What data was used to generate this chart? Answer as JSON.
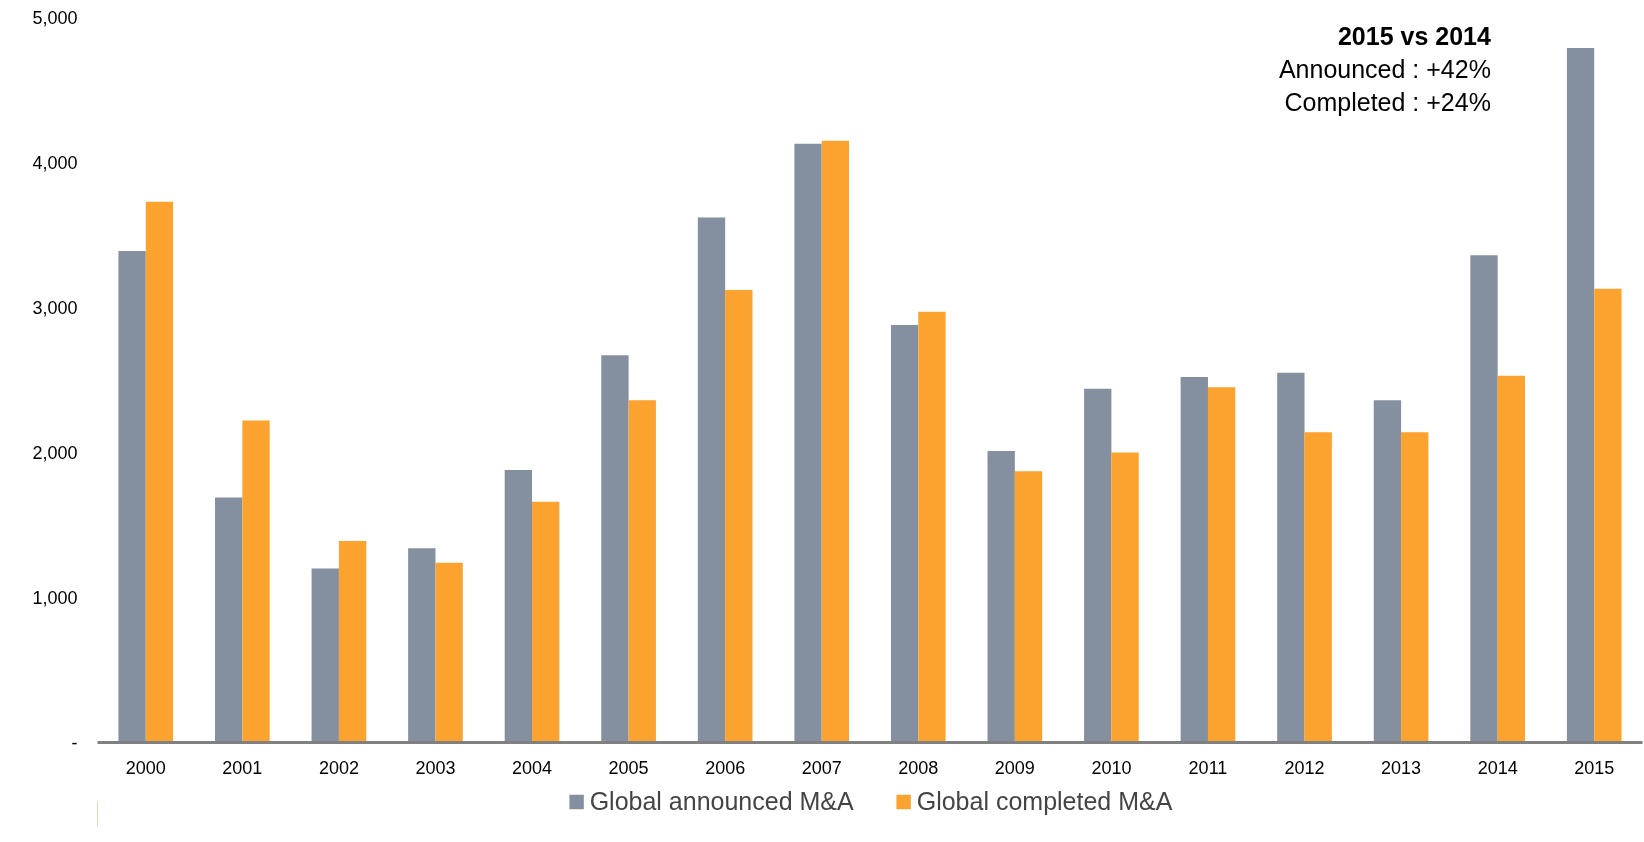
{
  "chart_data": {
    "type": "bar",
    "categories": [
      "2000",
      "2001",
      "2002",
      "2003",
      "2004",
      "2005",
      "2006",
      "2007",
      "2008",
      "2009",
      "2010",
      "2011",
      "2012",
      "2013",
      "2014",
      "2015"
    ],
    "series": [
      {
        "name": "Global announced M&A",
        "color": "#848f9f",
        "values": [
          3390,
          1690,
          1200,
          1340,
          1880,
          2670,
          3620,
          4130,
          2880,
          2010,
          2440,
          2520,
          2550,
          2360,
          3360,
          4790
        ]
      },
      {
        "name": "Global completed M&A",
        "color": "#fca22e",
        "values": [
          3730,
          2220,
          1390,
          1240,
          1660,
          2360,
          3120,
          4150,
          2970,
          1870,
          2000,
          2450,
          2140,
          2140,
          2530,
          3130
        ]
      }
    ],
    "ylim": [
      0,
      5000
    ],
    "yticks": [
      {
        "value": 0,
        "label": "-"
      },
      {
        "value": 1000,
        "label": "1,000"
      },
      {
        "value": 2000,
        "label": "2,000"
      },
      {
        "value": 3000,
        "label": "3,000"
      },
      {
        "value": 4000,
        "label": "4,000"
      },
      {
        "value": 5000,
        "label": "5,000"
      }
    ],
    "annotations": [
      "2015 vs 2014",
      "Announced : +42%",
      "Completed : +24%"
    ],
    "legend": "bottom",
    "grid": false
  }
}
